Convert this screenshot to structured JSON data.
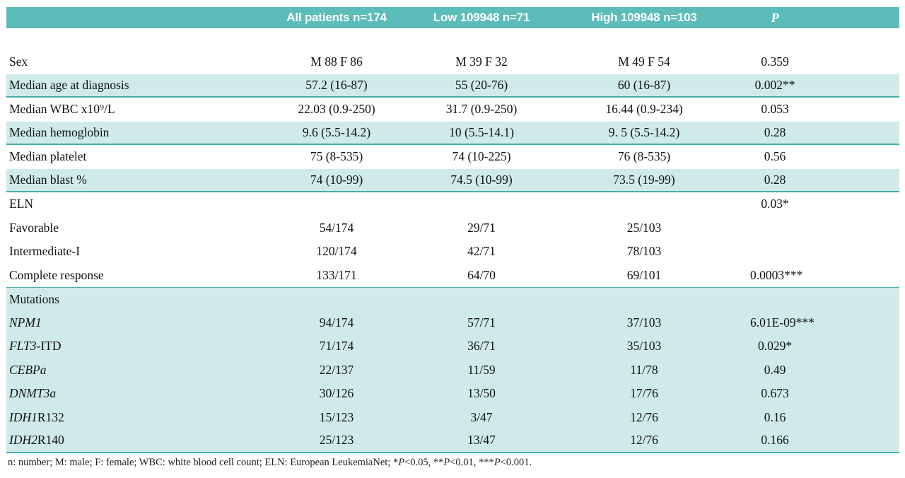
{
  "colors": {
    "header_bg": "#5cbcb9",
    "row_shade": "#cfeae9",
    "rule_line": "#46aca8"
  },
  "table": {
    "header": {
      "col_label": "",
      "col_all": "All patients n=174",
      "col_low": "Low 109948 n=71",
      "col_high": "High 109948 n=103",
      "col_p": "P"
    },
    "rows": [
      {
        "label": [
          {
            "t": "Sex"
          }
        ],
        "cells": [
          "M 88 F 86",
          "M 39 F 32",
          "M 49 F 54",
          "0.359"
        ],
        "shaded": false
      },
      {
        "label": [
          {
            "t": "Median age at diagnosis"
          }
        ],
        "cells": [
          "57.2 (16-87)",
          "55 (20-76)",
          "60 (16-87)",
          "0.002**"
        ],
        "shaded": true,
        "border_bottom": true
      },
      {
        "label": [
          {
            "t": "Median WBC x10⁹/L"
          }
        ],
        "cells": [
          "22.03 (0.9-250)",
          "31.7 (0.9-250)",
          "16.44 (0.9-234)",
          "0.053"
        ],
        "shaded": false
      },
      {
        "label": [
          {
            "t": "Median hemoglobin"
          }
        ],
        "cells": [
          "9.6 (5.5-14.2)",
          "10 (5.5-14.1)",
          "9. 5 (5.5-14.2)",
          "0.28"
        ],
        "shaded": true,
        "border_bottom": true
      },
      {
        "label": [
          {
            "t": "Median platelet"
          }
        ],
        "cells": [
          "75 (8-535)",
          "74 (10-225)",
          "76 (8-535)",
          "0.56"
        ],
        "shaded": false
      },
      {
        "label": [
          {
            "t": "Median blast %"
          }
        ],
        "cells": [
          "74 (10-99)",
          "74.5 (10-99)",
          "73.5 (19-99)",
          "0.28"
        ],
        "shaded": true,
        "border_bottom": true
      },
      {
        "label": [
          {
            "t": "ELN"
          }
        ],
        "cells": [
          "",
          "",
          "",
          "0.03*"
        ],
        "shaded": false
      },
      {
        "label": [
          {
            "t": "Favorable"
          }
        ],
        "cells": [
          "54/174",
          "29/71",
          "25/103",
          ""
        ],
        "shaded": false
      },
      {
        "label": [
          {
            "t": "Intermediate-I"
          }
        ],
        "cells": [
          "120/174",
          "42/71",
          "78/103",
          ""
        ],
        "shaded": false
      },
      {
        "label": [
          {
            "t": "Complete response"
          }
        ],
        "cells": [
          "133/171",
          "64/70",
          "69/101",
          "0.0003***"
        ],
        "shaded": false
      },
      {
        "label": [
          {
            "t": "Mutations"
          }
        ],
        "cells": [
          "",
          "",
          "",
          ""
        ],
        "shaded": true,
        "border_top": true
      },
      {
        "label": [
          {
            "t": "NPM1",
            "i": true
          }
        ],
        "cells": [
          "94/174",
          "57/71",
          "37/103",
          "6.01E-09***"
        ],
        "shaded": true
      },
      {
        "label": [
          {
            "t": "FLT3",
            "i": true
          },
          {
            "t": "-ITD"
          }
        ],
        "cells": [
          "71/174",
          "36/71",
          "35/103",
          "0.029*"
        ],
        "shaded": true
      },
      {
        "label": [
          {
            "t": "CEBPa",
            "i": true
          }
        ],
        "cells": [
          "22/137",
          "11/59",
          "11/78",
          "0.49"
        ],
        "shaded": true
      },
      {
        "label": [
          {
            "t": "DNMT3a",
            "i": true
          }
        ],
        "cells": [
          "30/126",
          "13/50",
          "17/76",
          "0.673"
        ],
        "shaded": true
      },
      {
        "label": [
          {
            "t": "IDH1",
            "i": true
          },
          {
            "t": "R132"
          }
        ],
        "cells": [
          "15/123",
          "3/47",
          "12/76",
          "0.16"
        ],
        "shaded": true
      },
      {
        "label": [
          {
            "t": "IDH2",
            "i": true
          },
          {
            "t": "R140"
          }
        ],
        "cells": [
          "25/123",
          "13/47",
          "12/76",
          "0.166"
        ],
        "shaded": true,
        "border_bottom": true
      }
    ],
    "footnote": [
      {
        "t": "n: number; M: male; F: female; WBC: white blood cell count; ELN: European LeukemiaNet; *"
      },
      {
        "t": "P",
        "i": true
      },
      {
        "t": "<0.05, **"
      },
      {
        "t": "P",
        "i": true
      },
      {
        "t": "<0.01, ***"
      },
      {
        "t": "P",
        "i": true
      },
      {
        "t": "<0.001."
      }
    ]
  }
}
